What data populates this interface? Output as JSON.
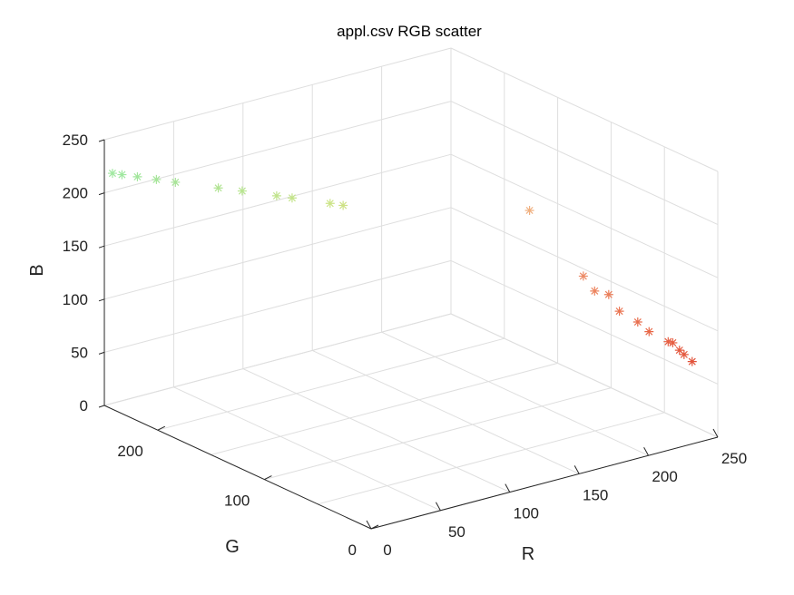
{
  "chart_data": {
    "type": "scatter",
    "projection": "3d",
    "title": "appl.csv RGB scatter",
    "xlabel": "R",
    "ylabel": "G",
    "zlabel": "B",
    "xlim": [
      0,
      250
    ],
    "ylim": [
      0,
      250
    ],
    "zlim": [
      0,
      250
    ],
    "xticks": [
      "0",
      "50",
      "100",
      "150",
      "200",
      "250"
    ],
    "yticks": [
      "0",
      "100",
      "200"
    ],
    "zticks": [
      "0",
      "50",
      "100",
      "150",
      "200",
      "250"
    ],
    "grid": true,
    "marker": "*",
    "points": [
      {
        "r": 2,
        "g": 245,
        "b": 220,
        "color": "#a0e8a0"
      },
      {
        "r": 5,
        "g": 240,
        "b": 220,
        "color": "#a0e8a0"
      },
      {
        "r": 10,
        "g": 232,
        "b": 220,
        "color": "#a2e69c"
      },
      {
        "r": 16,
        "g": 222,
        "b": 220,
        "color": "#a6e59a"
      },
      {
        "r": 22,
        "g": 212,
        "b": 220,
        "color": "#a8e498"
      },
      {
        "r": 36,
        "g": 190,
        "b": 220,
        "color": "#b2e494"
      },
      {
        "r": 44,
        "g": 178,
        "b": 220,
        "color": "#b8e590"
      },
      {
        "r": 55,
        "g": 160,
        "b": 220,
        "color": "#c0e48c"
      },
      {
        "r": 60,
        "g": 152,
        "b": 220,
        "color": "#c4e48a"
      },
      {
        "r": 72,
        "g": 132,
        "b": 220,
        "color": "#cce488"
      },
      {
        "r": 76,
        "g": 125,
        "b": 220,
        "color": "#cee286"
      },
      {
        "r": 222,
        "g": 140,
        "b": 158,
        "color": "#f0b080"
      },
      {
        "r": 230,
        "g": 100,
        "b": 112,
        "color": "#ec8a66"
      },
      {
        "r": 232,
        "g": 92,
        "b": 101,
        "color": "#ec845e"
      },
      {
        "r": 236,
        "g": 84,
        "b": 100,
        "color": "#ea7e5a"
      },
      {
        "r": 236,
        "g": 74,
        "b": 89,
        "color": "#ea7654"
      },
      {
        "r": 240,
        "g": 62,
        "b": 83,
        "color": "#e86e4e"
      },
      {
        "r": 242,
        "g": 54,
        "b": 77,
        "color": "#e86848"
      },
      {
        "r": 245,
        "g": 40,
        "b": 73,
        "color": "#e66044"
      },
      {
        "r": 246,
        "g": 37,
        "b": 73,
        "color": "#e65e42"
      },
      {
        "r": 247,
        "g": 32,
        "b": 68,
        "color": "#e45a40"
      },
      {
        "r": 248,
        "g": 29,
        "b": 65,
        "color": "#e4583e"
      },
      {
        "r": 250,
        "g": 24,
        "b": 60,
        "color": "#e2543c"
      }
    ]
  }
}
